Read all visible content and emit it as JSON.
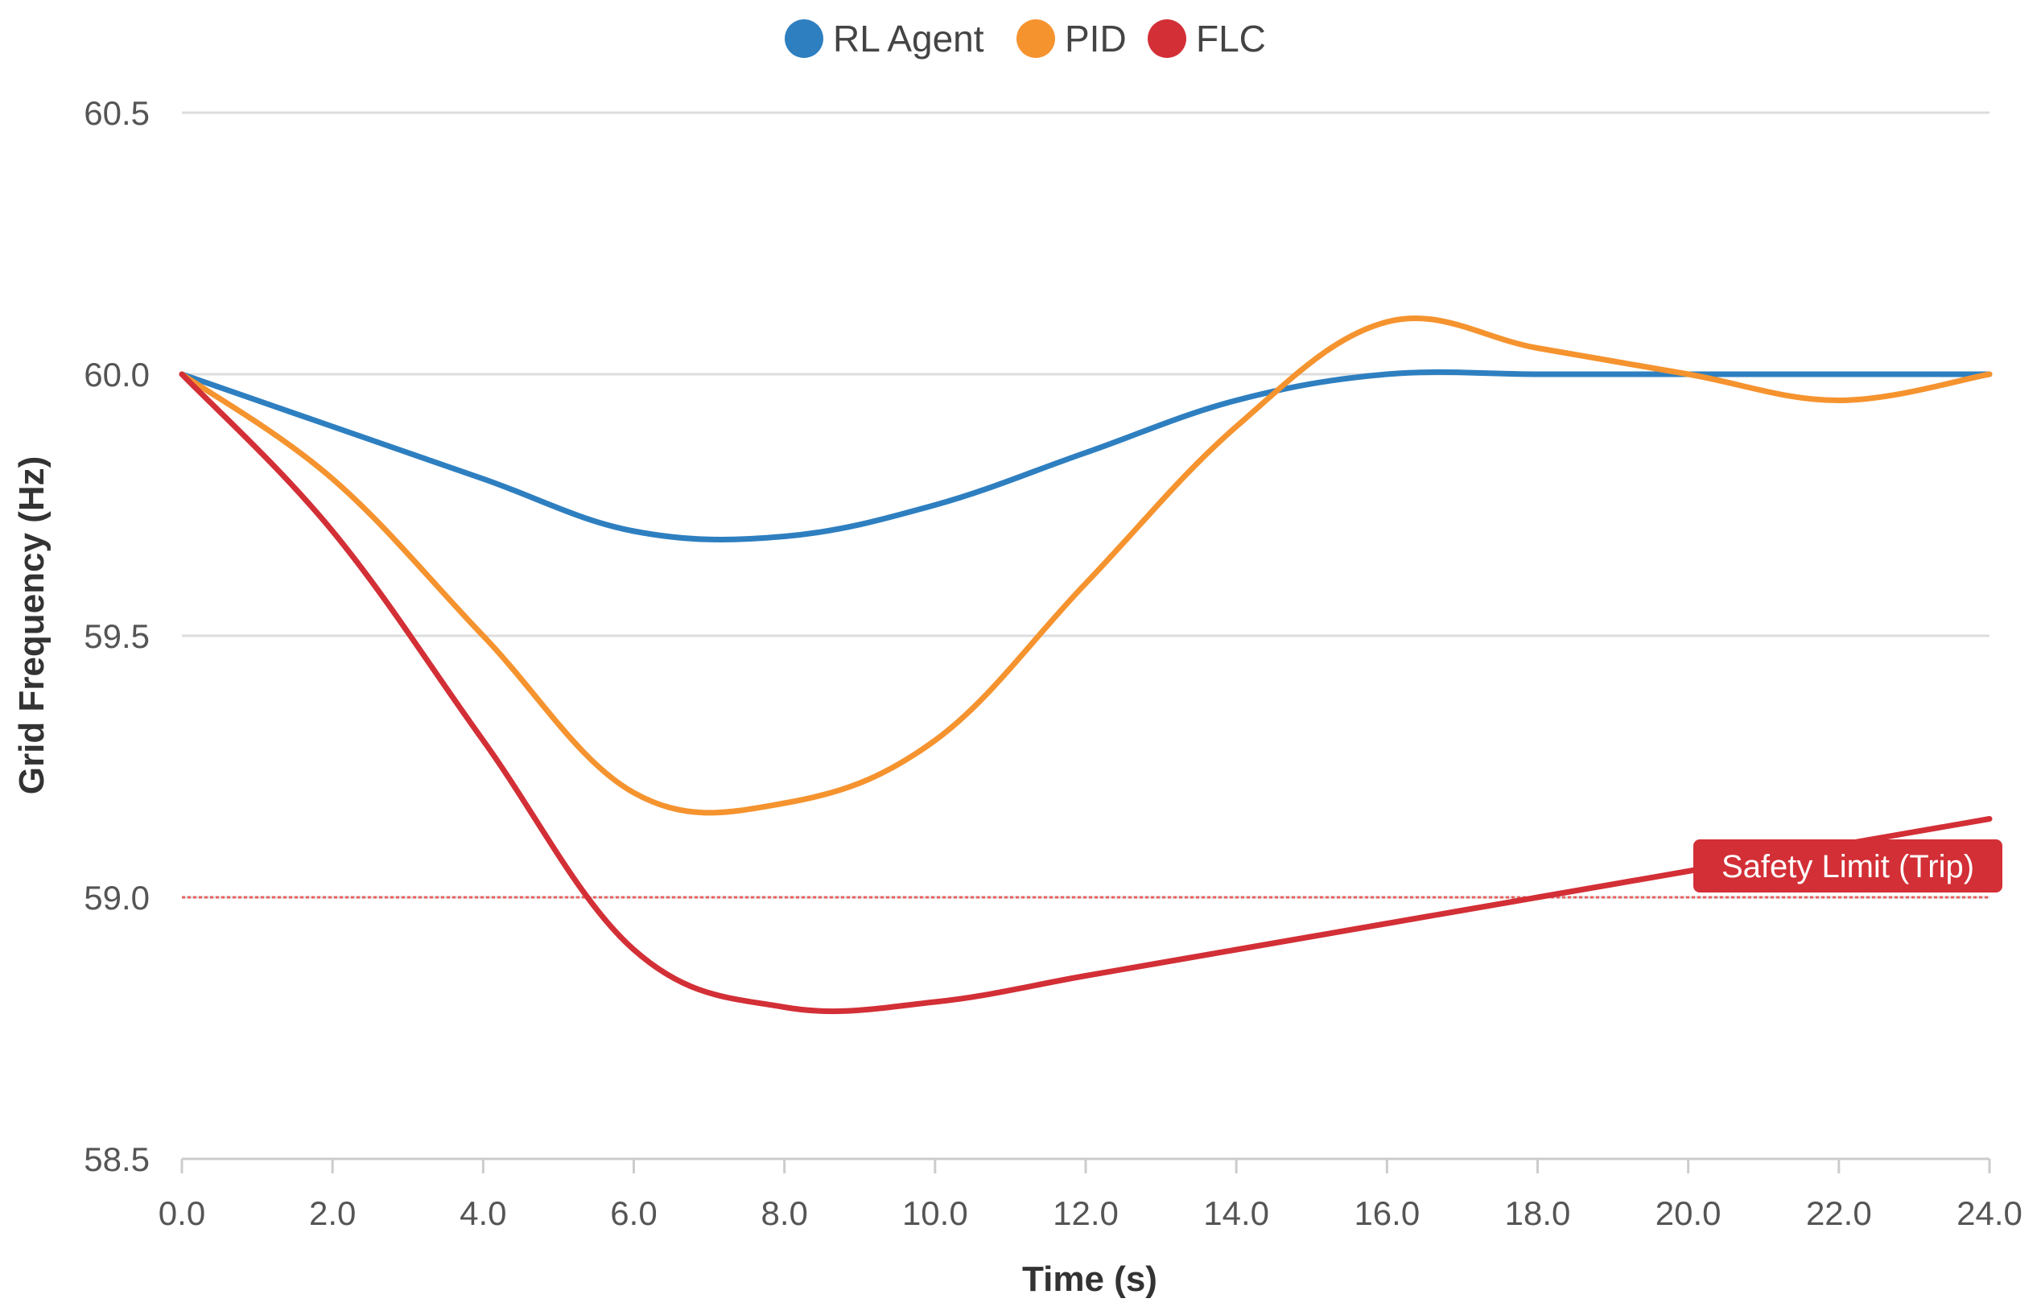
{
  "chart_data": {
    "type": "line",
    "title": "",
    "xlabel": "Time (s)",
    "ylabel": "Grid Frequency (Hz)",
    "xlim": [
      0,
      24
    ],
    "ylim": [
      58.5,
      60.5
    ],
    "x_ticks": [
      0,
      2,
      4,
      6,
      8,
      10,
      12,
      14,
      16,
      18,
      20,
      22,
      24
    ],
    "x_tick_labels": [
      "0.0",
      "2.0",
      "4.0",
      "6.0",
      "8.0",
      "10.0",
      "12.0",
      "14.0",
      "16.0",
      "18.0",
      "20.0",
      "22.0",
      "24.0"
    ],
    "y_ticks": [
      58.5,
      59.0,
      59.5,
      60.0,
      60.5
    ],
    "y_tick_labels": [
      "58.5",
      "59.0",
      "59.5",
      "60.0",
      "60.5"
    ],
    "grid": true,
    "legend_position": "top-center",
    "x": [
      0,
      2,
      4,
      6,
      8,
      10,
      12,
      14,
      16,
      18,
      20,
      22,
      24
    ],
    "series": [
      {
        "name": "RL Agent",
        "color": "#2e7fc0",
        "values": [
          60.0,
          59.9,
          59.8,
          59.7,
          59.69,
          59.75,
          59.85,
          59.95,
          60.0,
          60.0,
          60.0,
          60.0,
          60.0
        ]
      },
      {
        "name": "PID",
        "color": "#f5932f",
        "values": [
          60.0,
          59.8,
          59.5,
          59.2,
          59.18,
          59.3,
          59.6,
          59.9,
          60.1,
          60.05,
          60.0,
          59.95,
          60.0
        ]
      },
      {
        "name": "FLC",
        "color": "#d32f36",
        "values": [
          60.0,
          59.7,
          59.3,
          58.9,
          58.79,
          58.8,
          58.85,
          58.9,
          58.95,
          59.0,
          59.05,
          59.1,
          59.15
        ]
      }
    ],
    "annotations": [
      {
        "type": "horizontal-line",
        "y": 59.0,
        "style": "dotted",
        "color": "#e8605f",
        "label": "Safety Limit (Trip)",
        "label_background": "#d32f36",
        "label_color": "#ffffff",
        "label_position": "right"
      }
    ]
  }
}
